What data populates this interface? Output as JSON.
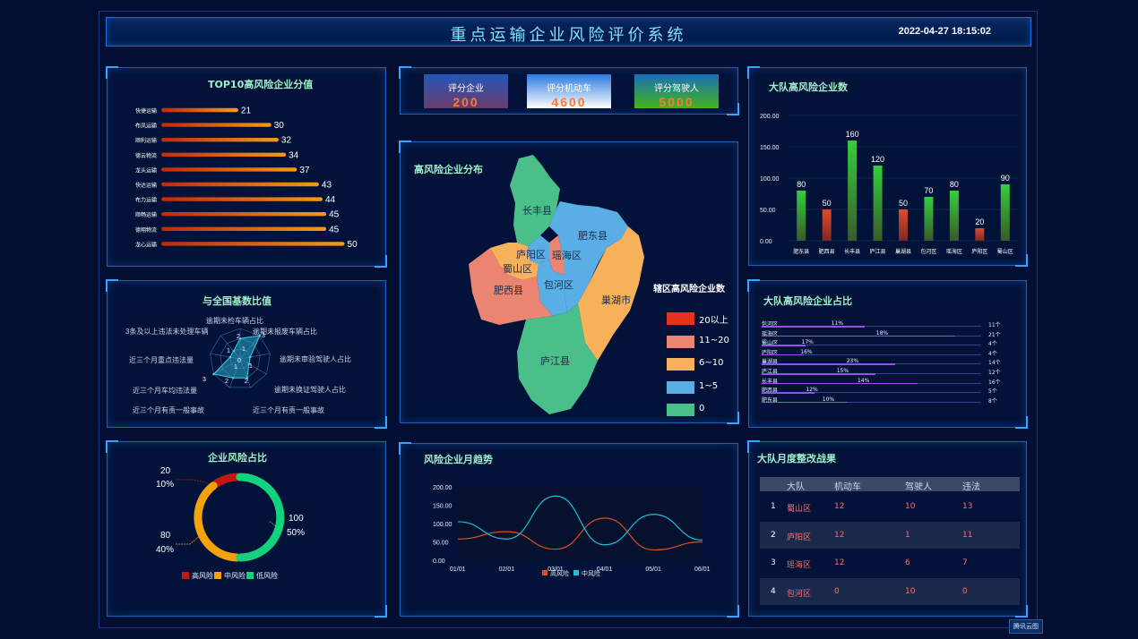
{
  "header": {
    "title": "重点运输企业风险评价系统",
    "datetime": "2022-04-27 18:15:02"
  },
  "top10": {
    "title": "TOP10高风险企业分值",
    "items": [
      {
        "name": "快捷运输",
        "value": 21
      },
      {
        "name": "布凤运输",
        "value": 30
      },
      {
        "name": "顺利运输",
        "value": 32
      },
      {
        "name": "德云物流",
        "value": 34
      },
      {
        "name": "龙头运输",
        "value": 37
      },
      {
        "name": "快达运输",
        "value": 43
      },
      {
        "name": "布力运输",
        "value": 44
      },
      {
        "name": "顺畅运输",
        "value": 45
      },
      {
        "name": "德翔物流",
        "value": 45
      },
      {
        "name": "龙心运输",
        "value": 50
      }
    ],
    "max": 55
  },
  "radar": {
    "title": "与全国基数比值",
    "indicators": [
      "逾期未检车辆占比",
      "逾期未报废车辆占比",
      "逾期未审验驾驶人占比",
      "逾期未换证驾驶人占比",
      "近三个月有责一般事故",
      "近三个月有责一般事故",
      "近三个月车均违法量",
      "近三个月重点违法量",
      "3条及以上违法未处理车辆"
    ],
    "labels_left": [
      "3条及以上违法未处理车辆",
      "近三个月重点违法量",
      "近三个月车均违法量",
      "近三个月有责一般事故"
    ],
    "labels_right": [
      "逾期未检车辆占比",
      "逾期未报废车辆占比",
      "逾期未审验驾驶人占比",
      "逾期未换证驾驶人占比",
      "近三个月有责一般事故"
    ],
    "values": [
      2,
      3,
      1,
      1,
      2,
      2,
      3,
      1,
      1
    ],
    "tick_labels": [
      "2",
      "3",
      "1",
      "0",
      "1",
      "2",
      "2",
      "3",
      "1",
      "1"
    ],
    "max": 3
  },
  "risk_share": {
    "title": "企业风险占比",
    "slices": [
      {
        "name": "高风险",
        "value": 20,
        "pct": "10%",
        "color": "#c0190f"
      },
      {
        "name": "中风险",
        "value": 80,
        "pct": "40%",
        "color": "#f5a20a"
      },
      {
        "name": "低风险",
        "value": 100,
        "pct": "50%",
        "color": "#13d27c"
      }
    ]
  },
  "kpis": [
    {
      "label": "评分企业",
      "value": "200",
      "bg": "linear-gradient(180deg,#2356b8 0%,#6b3b6e 100%)",
      "color": "#ff7a2a"
    },
    {
      "label": "评分机动车",
      "value": "4600",
      "bg": "linear-gradient(180deg,#2a7ae0 0%,#ffffff 100%)",
      "color": "#ff7a2a"
    },
    {
      "label": "评分驾驶人",
      "value": "5000",
      "bg": "linear-gradient(180deg,#1870b8 0%,#44b41c 100%)",
      "color": "#ff7a2a"
    }
  ],
  "map": {
    "title": "高风险企业分布",
    "legend_title": "辖区高风险企业数",
    "legend": [
      {
        "label": "20以上",
        "color": "#e8321e"
      },
      {
        "label": "11~20",
        "color": "#ec8472"
      },
      {
        "label": "6~10",
        "color": "#f6b15a"
      },
      {
        "label": "1~5",
        "color": "#5aaee6"
      },
      {
        "label": "0",
        "color": "#4bbf8a"
      }
    ],
    "regions": [
      "长丰县",
      "肥东县",
      "庐阳区",
      "瑶海区",
      "蜀山区",
      "包河区",
      "肥西县",
      "巢湖市",
      "庐江县"
    ]
  },
  "trend": {
    "title": "风险企业月趋势",
    "legend": [
      "高风险",
      "中风险"
    ]
  },
  "bars": {
    "title": "大队高风险企业数",
    "y_ticks": [
      "0.00",
      "50.00",
      "100.00",
      "150.00",
      "200.00"
    ]
  },
  "share": {
    "title": "大队高风险企业占比",
    "rows": [
      {
        "name": "包河区",
        "pct": "11%",
        "count": "11个",
        "frac": 0.47
      },
      {
        "name": "瑶海区",
        "pct": "18%",
        "count": "21个",
        "frac": 0.88
      },
      {
        "name": "蜀山区",
        "pct": "17%",
        "count": "4个",
        "frac": 0.2
      },
      {
        "name": "庐阳区",
        "pct": "16%",
        "count": "4个",
        "frac": 0.19
      },
      {
        "name": "巢湖县",
        "pct": "23%",
        "count": "14个",
        "frac": 0.61
      },
      {
        "name": "庐江县",
        "pct": "15%",
        "count": "12个",
        "frac": 0.52
      },
      {
        "name": "长丰县",
        "pct": "14%",
        "count": "16个",
        "frac": 0.71
      },
      {
        "name": "肥西县",
        "pct": "12%",
        "count": "5个",
        "frac": 0.24
      },
      {
        "name": "肥东县",
        "pct": "10%",
        "count": "8个",
        "frac": 0.39
      }
    ]
  },
  "monthly": {
    "title": "大队月度整改战果",
    "headers": [
      "大队",
      "机动车",
      "驾驶人",
      "违法"
    ],
    "rows": [
      {
        "idx": "1",
        "team": "蜀山区",
        "vehicle": "12",
        "driver": "10",
        "violation": "13"
      },
      {
        "idx": "2",
        "team": "庐阳区",
        "vehicle": "12",
        "driver": "1",
        "violation": "11"
      },
      {
        "idx": "3",
        "team": "瑶海区",
        "vehicle": "12",
        "driver": "6",
        "violation": "7"
      },
      {
        "idx": "4",
        "team": "包河区",
        "vehicle": "0",
        "driver": "10",
        "violation": "0"
      }
    ]
  },
  "footer": {
    "logo": "腾讯云图"
  },
  "chart_data": [
    {
      "type": "bar",
      "title": "TOP10高风险企业分值",
      "categories": [
        "快捷运输",
        "布凤运输",
        "顺利运输",
        "德云物流",
        "龙头运输",
        "快达运输",
        "布力运输",
        "顺畅运输",
        "德翔物流",
        "龙心运输"
      ],
      "values": [
        21,
        30,
        32,
        34,
        37,
        43,
        44,
        45,
        45,
        50
      ]
    },
    {
      "type": "bar",
      "title": "大队高风险企业数",
      "categories": [
        "肥东县",
        "肥西县",
        "长丰县",
        "庐江县",
        "巢湖县",
        "包河区",
        "瑶海区",
        "庐阳区",
        "蜀山区"
      ],
      "values": [
        80,
        50,
        160,
        120,
        50,
        70,
        80,
        20,
        90
      ],
      "ylim": [
        0,
        200
      ]
    },
    {
      "type": "pie",
      "title": "企业风险占比",
      "categories": [
        "高风险",
        "中风险",
        "低风险"
      ],
      "values": [
        20,
        80,
        100
      ]
    },
    {
      "type": "line",
      "title": "风险企业月趋势",
      "x": [
        "01/01",
        "02/01",
        "03/01",
        "04/01",
        "05/01",
        "06/01"
      ],
      "y_ticks": [
        "0.00",
        "50.00",
        "100.00",
        "150.00",
        "200.00"
      ],
      "series": [
        {
          "name": "高风险",
          "color": "#e0501e",
          "values": [
            58,
            78,
            30,
            115,
            28,
            50
          ]
        },
        {
          "name": "中风险",
          "color": "#19c0d8",
          "values": [
            105,
            58,
            175,
            42,
            125,
            55
          ]
        }
      ],
      "ylim": [
        0,
        200
      ]
    }
  ]
}
